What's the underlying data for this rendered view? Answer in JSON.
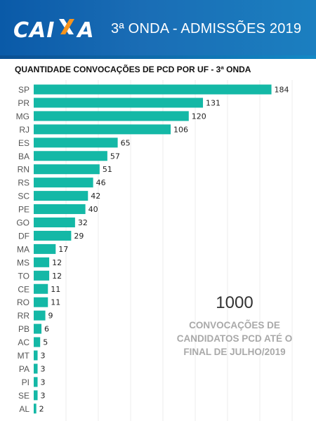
{
  "header": {
    "logo_text": "CAIXA",
    "title": "3ª ONDA - ADMISSÕES 2019",
    "colors": {
      "background": "#1769b3",
      "logo_accent": "#f7941d"
    }
  },
  "chart_data": {
    "type": "bar",
    "orientation": "horizontal",
    "title": "QUANTIDADE CONVOCAÇÕES DE PCD POR UF - 3ª ONDA",
    "categories": [
      "SP",
      "PR",
      "MG",
      "RJ",
      "ES",
      "BA",
      "RN",
      "RS",
      "SC",
      "PE",
      "GO",
      "DF",
      "MA",
      "MS",
      "TO",
      "CE",
      "RO",
      "RR",
      "PB",
      "AC",
      "MT",
      "PA",
      "PI",
      "SE",
      "AL"
    ],
    "values": [
      184,
      131,
      120,
      106,
      65,
      57,
      51,
      46,
      42,
      40,
      32,
      29,
      17,
      12,
      12,
      11,
      11,
      9,
      6,
      5,
      3,
      3,
      3,
      3,
      2
    ],
    "xlim": [
      0,
      200
    ],
    "grid": true,
    "bar_color": "#14b8a6",
    "data_labels": true
  },
  "card": {
    "value": "1000",
    "caption": "CONVOCAÇÕES DE CANDIDATOS PCD ATÉ O FINAL DE JULHO/2019"
  }
}
